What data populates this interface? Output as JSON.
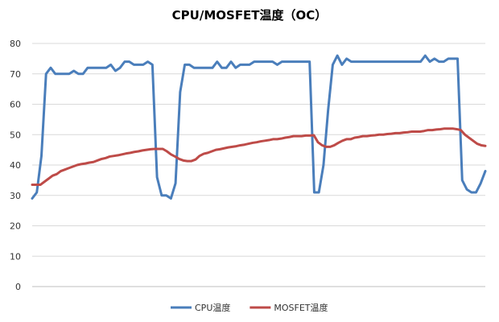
{
  "chart_data": {
    "type": "line",
    "title": "CPU/MOSFET温度（OC）",
    "xlabel": "",
    "ylabel": "",
    "ylim": [
      0,
      80
    ],
    "yticks": [
      0,
      10,
      20,
      30,
      40,
      50,
      60,
      70,
      80
    ],
    "grid": true,
    "legend": "bottom",
    "series": [
      {
        "name": "CPU温度",
        "color": "#4a7ebb",
        "values": [
          29,
          31,
          43,
          70,
          72,
          70,
          70,
          70,
          70,
          71,
          70,
          70,
          72,
          72,
          72,
          72,
          72,
          73,
          71,
          72,
          74,
          74,
          73,
          73,
          73,
          74,
          73,
          36,
          30,
          30,
          29,
          34,
          64,
          73,
          73,
          72,
          72,
          72,
          72,
          72,
          74,
          72,
          72,
          74,
          72,
          73,
          73,
          73,
          74,
          74,
          74,
          74,
          74,
          73,
          74,
          74,
          74,
          74,
          74,
          74,
          74,
          31,
          31,
          40,
          58,
          73,
          76,
          73,
          75,
          74,
          74,
          74,
          74,
          74,
          74,
          74,
          74,
          74,
          74,
          74,
          74,
          74,
          74,
          74,
          74,
          76,
          74,
          75,
          74,
          74,
          75,
          75,
          75,
          35,
          32,
          31,
          31,
          34,
          38
        ]
      },
      {
        "name": "MOSFET温度",
        "color": "#be4b48",
        "values": [
          33.5,
          33.5,
          33.5,
          34.5,
          35.5,
          36.5,
          37.0,
          38.0,
          38.5,
          39.0,
          39.5,
          40.0,
          40.3,
          40.5,
          40.8,
          41.0,
          41.5,
          42.0,
          42.3,
          42.8,
          43.0,
          43.2,
          43.5,
          43.8,
          44.0,
          44.3,
          44.5,
          44.8,
          45.0,
          45.2,
          45.3,
          45.3,
          45.3,
          44.5,
          43.5,
          42.8,
          42.0,
          41.5,
          41.3,
          41.3,
          41.8,
          43.0,
          43.7,
          44.0,
          44.5,
          45.0,
          45.2,
          45.5,
          45.8,
          46.0,
          46.2,
          46.5,
          46.7,
          47.0,
          47.3,
          47.5,
          47.8,
          48.0,
          48.2,
          48.5,
          48.5,
          48.7,
          49.0,
          49.2,
          49.5,
          49.5,
          49.5,
          49.7,
          49.7,
          49.8,
          47.5,
          46.5,
          46.0,
          46.0,
          46.5,
          47.3,
          48.0,
          48.5,
          48.5,
          49.0,
          49.2,
          49.5,
          49.5,
          49.7,
          49.8,
          50.0,
          50.0,
          50.2,
          50.3,
          50.5,
          50.5,
          50.7,
          50.8,
          51.0,
          51.0,
          51.0,
          51.2,
          51.5,
          51.5,
          51.7,
          51.8,
          52.0,
          52.0,
          52.0,
          51.8,
          51.5,
          50.0,
          49.0,
          48.0,
          47.0,
          46.5,
          46.3
        ]
      }
    ]
  }
}
